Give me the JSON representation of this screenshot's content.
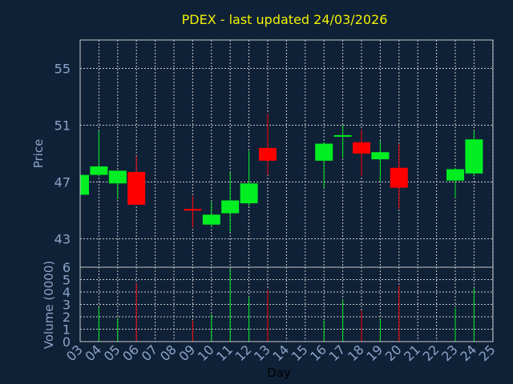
{
  "colors": {
    "background": "#0f2137",
    "up": "#00ee22",
    "down": "#ff0000",
    "grid": "#c8c8c8",
    "title": "#f0f000",
    "axis_text": "#8aa4c8"
  },
  "chart_data": {
    "type": "candlestick",
    "title": "PDEX - last updated 24/03/2026",
    "xlabel": "Day",
    "price_panel": {
      "ylabel": "Price",
      "ylim": [
        41,
        57
      ],
      "yticks": [
        43,
        47,
        51,
        55
      ]
    },
    "volume_panel": {
      "ylabel": "Volume (0000)",
      "ylim": [
        0,
        6
      ],
      "yticks": [
        0,
        1,
        2,
        3,
        4,
        5,
        6
      ]
    },
    "x_ticks": [
      "03",
      "04",
      "05",
      "06",
      "07",
      "08",
      "09",
      "10",
      "11",
      "12",
      "13",
      "14",
      "15",
      "16",
      "17",
      "18",
      "19",
      "20",
      "21",
      "22",
      "23",
      "24",
      "25"
    ],
    "grid": true,
    "candles": [
      {
        "day": "03",
        "open": 46.1,
        "high": 47.6,
        "low": 46.0,
        "close": 47.5
      },
      {
        "day": "04",
        "open": 47.5,
        "high": 50.6,
        "low": 47.4,
        "close": 48.1
      },
      {
        "day": "05",
        "open": 46.9,
        "high": 47.8,
        "low": 45.8,
        "close": 47.8
      },
      {
        "day": "06",
        "open": 47.7,
        "high": 48.8,
        "low": 45.4,
        "close": 45.4
      },
      {
        "day": "09",
        "open": 45.1,
        "high": 46.0,
        "low": 43.8,
        "close": 45.0
      },
      {
        "day": "10",
        "open": 44.0,
        "high": 45.6,
        "low": 43.8,
        "close": 44.7
      },
      {
        "day": "11",
        "open": 44.8,
        "high": 47.7,
        "low": 43.5,
        "close": 45.7
      },
      {
        "day": "12",
        "open": 45.5,
        "high": 49.2,
        "low": 45.3,
        "close": 46.9
      },
      {
        "day": "13",
        "open": 49.4,
        "high": 51.8,
        "low": 47.5,
        "close": 48.5
      },
      {
        "day": "16",
        "open": 48.5,
        "high": 49.8,
        "low": 46.6,
        "close": 49.7
      },
      {
        "day": "17",
        "open": 50.2,
        "high": 51.0,
        "low": 48.7,
        "close": 50.3
      },
      {
        "day": "18",
        "open": 49.8,
        "high": 50.7,
        "low": 47.4,
        "close": 49.0
      },
      {
        "day": "19",
        "open": 48.6,
        "high": 49.9,
        "low": 47.0,
        "close": 49.1
      },
      {
        "day": "20",
        "open": 48.0,
        "high": 49.7,
        "low": 45.1,
        "close": 46.6
      },
      {
        "day": "23",
        "open": 47.1,
        "high": 48.0,
        "low": 45.9,
        "close": 47.9
      },
      {
        "day": "24",
        "open": 47.6,
        "high": 50.6,
        "low": 47.4,
        "close": 50.0
      }
    ],
    "volume": [
      {
        "day": "03",
        "value": 0.0,
        "direction": "up"
      },
      {
        "day": "04",
        "value": 2.8,
        "direction": "up"
      },
      {
        "day": "05",
        "value": 1.9,
        "direction": "up"
      },
      {
        "day": "06",
        "value": 4.7,
        "direction": "down"
      },
      {
        "day": "09",
        "value": 1.7,
        "direction": "down"
      },
      {
        "day": "10",
        "value": 2.2,
        "direction": "up"
      },
      {
        "day": "11",
        "value": 5.9,
        "direction": "up"
      },
      {
        "day": "12",
        "value": 3.6,
        "direction": "up"
      },
      {
        "day": "13",
        "value": 4.2,
        "direction": "down"
      },
      {
        "day": "16",
        "value": 1.7,
        "direction": "up"
      },
      {
        "day": "17",
        "value": 3.4,
        "direction": "up"
      },
      {
        "day": "18",
        "value": 2.5,
        "direction": "down"
      },
      {
        "day": "19",
        "value": 1.8,
        "direction": "up"
      },
      {
        "day": "20",
        "value": 4.5,
        "direction": "down"
      },
      {
        "day": "23",
        "value": 2.7,
        "direction": "up"
      },
      {
        "day": "24",
        "value": 4.3,
        "direction": "up"
      }
    ]
  }
}
